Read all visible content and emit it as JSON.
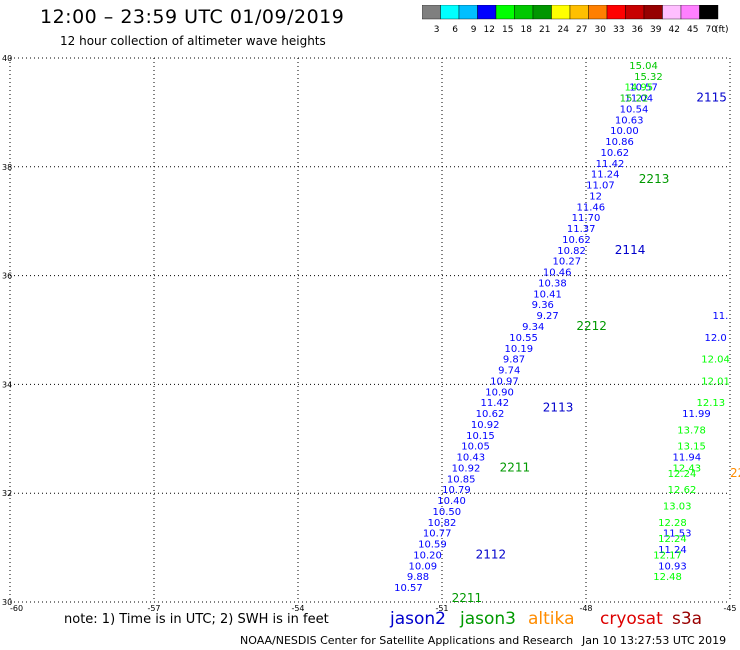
{
  "header": {
    "title": "12:00 – 23:59 UTC 01/09/2019",
    "subtitle": "12 hour collection of altimeter wave heights"
  },
  "colorbar": {
    "colors": [
      "#7f7f7f",
      "#00ffff",
      "#00bfff",
      "#0000ff",
      "#00ff00",
      "#00c800",
      "#009600",
      "#ffff00",
      "#ffbf00",
      "#ff7f00",
      "#ff0000",
      "#c80000",
      "#960000",
      "#ffbfff",
      "#ff80ff",
      "#000000"
    ],
    "labels": [
      "3",
      "6",
      "9",
      "12",
      "15",
      "18",
      "21",
      "24",
      "27",
      "30",
      "33",
      "36",
      "39",
      "42",
      "45",
      "70"
    ],
    "unit": "(ft)"
  },
  "note": "note: 1) Time is in UTC; 2) SWH is in feet",
  "footer": {
    "credit": "NOAA/NESDIS Center for Satellite Applications and Research",
    "timestamp": "Jan 10 13:27:53 UTC 2019"
  },
  "satellites": [
    {
      "name": "jason2",
      "color": "#0000cc"
    },
    {
      "name": "jason3",
      "color": "#009900"
    },
    {
      "name": "altika",
      "color": "#ff8c00"
    },
    {
      "name": "cryosat",
      "color": "#dd0000"
    },
    {
      "name": "s3a",
      "color": "#990000"
    }
  ],
  "chart_data": {
    "type": "scatter",
    "xlim": [
      -60,
      -45
    ],
    "ylim": [
      30,
      40
    ],
    "x_ticks": [
      "-60",
      "-57",
      "-54",
      "-51",
      "-48",
      "-45"
    ],
    "y_ticks": [
      "30",
      "32",
      "34",
      "36",
      "38",
      "40"
    ],
    "grid": true,
    "time_labels": [
      {
        "text": "2211",
        "x": -50.8,
        "y": 30.0,
        "color": "#009900"
      },
      {
        "text": "2112",
        "x": -50.3,
        "y": 30.8,
        "color": "#0000cc"
      },
      {
        "text": "2211",
        "x": -49.8,
        "y": 32.4,
        "color": "#009900"
      },
      {
        "text": "2113",
        "x": -48.9,
        "y": 33.5,
        "color": "#0000cc"
      },
      {
        "text": "2212",
        "x": -48.2,
        "y": 35.0,
        "color": "#009900"
      },
      {
        "text": "2114",
        "x": -47.4,
        "y": 36.4,
        "color": "#0000cc"
      },
      {
        "text": "2213",
        "x": -46.9,
        "y": 37.7,
        "color": "#009900"
      },
      {
        "text": "2115",
        "x": -45.7,
        "y": 39.2,
        "color": "#0000cc"
      },
      {
        "text": "22",
        "x": -45.0,
        "y": 32.3,
        "color": "#ff8c00"
      }
    ],
    "series": [
      {
        "name": "jason2",
        "points": [
          {
            "x": -51.7,
            "y": 30.2,
            "v": "10.57"
          },
          {
            "x": -51.5,
            "y": 30.4,
            "v": "9.88"
          },
          {
            "x": -51.4,
            "y": 30.6,
            "v": "10.09"
          },
          {
            "x": -51.3,
            "y": 30.8,
            "v": "10.20"
          },
          {
            "x": -51.2,
            "y": 31.0,
            "v": "10.59"
          },
          {
            "x": -51.1,
            "y": 31.2,
            "v": "10.77"
          },
          {
            "x": -51.0,
            "y": 31.4,
            "v": "10.82"
          },
          {
            "x": -50.9,
            "y": 31.6,
            "v": "10.50"
          },
          {
            "x": -50.8,
            "y": 31.8,
            "v": "10.40"
          },
          {
            "x": -50.7,
            "y": 32.0,
            "v": "10.79"
          },
          {
            "x": -50.6,
            "y": 32.2,
            "v": "10.85"
          },
          {
            "x": -50.5,
            "y": 32.4,
            "v": "10.92"
          },
          {
            "x": -50.4,
            "y": 32.6,
            "v": "10.43"
          },
          {
            "x": -50.3,
            "y": 32.8,
            "v": "10.05"
          },
          {
            "x": -50.2,
            "y": 33.0,
            "v": "10.15"
          },
          {
            "x": -50.1,
            "y": 33.2,
            "v": "10.92"
          },
          {
            "x": -50.0,
            "y": 33.4,
            "v": "10.62"
          },
          {
            "x": -49.9,
            "y": 33.6,
            "v": "11.42"
          },
          {
            "x": -49.8,
            "y": 33.8,
            "v": "10.90"
          },
          {
            "x": -49.7,
            "y": 34.0,
            "v": "10.97"
          },
          {
            "x": -49.6,
            "y": 34.2,
            "v": "9.74"
          },
          {
            "x": -49.5,
            "y": 34.4,
            "v": "9.87"
          },
          {
            "x": -49.4,
            "y": 34.6,
            "v": "10.19"
          },
          {
            "x": -49.3,
            "y": 34.8,
            "v": "10.55"
          },
          {
            "x": -49.1,
            "y": 35.0,
            "v": "9.34"
          },
          {
            "x": -48.8,
            "y": 35.6,
            "v": "10.41"
          },
          {
            "x": -48.7,
            "y": 35.8,
            "v": "10.38"
          },
          {
            "x": -48.6,
            "y": 36.0,
            "v": "10.46"
          },
          {
            "x": -48.4,
            "y": 36.2,
            "v": "10.27"
          },
          {
            "x": -48.3,
            "y": 36.4,
            "v": "10.82"
          },
          {
            "x": -48.2,
            "y": 36.6,
            "v": "10.62"
          },
          {
            "x": -48.1,
            "y": 36.8,
            "v": "11.37"
          },
          {
            "x": -47.9,
            "y": 37.2,
            "v": "11.46"
          },
          {
            "x": -47.7,
            "y": 37.6,
            "v": "11.07"
          },
          {
            "x": -47.6,
            "y": 37.8,
            "v": "11.24"
          },
          {
            "x": -47.5,
            "y": 38.0,
            "v": "11.42"
          },
          {
            "x": -47.4,
            "y": 38.2,
            "v": "10.62"
          },
          {
            "x": -47.3,
            "y": 38.4,
            "v": "10.86"
          },
          {
            "x": -47.2,
            "y": 38.6,
            "v": "10.00"
          },
          {
            "x": -47.1,
            "y": 38.8,
            "v": "10.63"
          },
          {
            "x": -47.0,
            "y": 39.0,
            "v": "10.54"
          },
          {
            "x": -46.9,
            "y": 39.2,
            "v": "11.04"
          },
          {
            "x": -46.8,
            "y": 39.4,
            "v": "10.57"
          },
          {
            "x": -45.7,
            "y": 33.4,
            "v": "11.99"
          },
          {
            "x": -45.9,
            "y": 32.6,
            "v": "11.94"
          },
          {
            "x": -46.1,
            "y": 31.2,
            "v": "11.53"
          },
          {
            "x": -46.2,
            "y": 30.9,
            "v": "11.24"
          },
          {
            "x": -46.2,
            "y": 30.6,
            "v": "10.93"
          }
        ]
      },
      {
        "name": "jason3",
        "points": [
          {
            "x": -46.8,
            "y": 39.8,
            "v": "15.04"
          },
          {
            "x": -46.7,
            "y": 39.6,
            "v": "15.32"
          },
          {
            "x": -46.9,
            "y": 39.4,
            "v": "14.95"
          },
          {
            "x": -47.0,
            "y": 39.2,
            "v": "15.22"
          },
          {
            "x": -47.8,
            "y": 37.4,
            "v": "12"
          },
          {
            "x": -48.0,
            "y": 37.0,
            "v": "11.70"
          },
          {
            "x": -45.2,
            "y": 35.2,
            "v": "11."
          },
          {
            "x": -45.3,
            "y": 34.8,
            "v": "12.0"
          },
          {
            "x": -45.3,
            "y": 34.4,
            "v": "12.04"
          },
          {
            "x": -45.3,
            "y": 34.0,
            "v": "12.01"
          },
          {
            "x": -45.4,
            "y": 33.6,
            "v": "12.13"
          },
          {
            "x": -45.8,
            "y": 33.1,
            "v": "13.78"
          },
          {
            "x": -45.8,
            "y": 32.8,
            "v": "13.15"
          },
          {
            "x": -45.9,
            "y": 32.4,
            "v": "12.43"
          },
          {
            "x": -46.0,
            "y": 32.3,
            "v": "12.24"
          },
          {
            "x": -46.0,
            "y": 32.0,
            "v": "12.62"
          },
          {
            "x": -46.1,
            "y": 31.7,
            "v": "13.03"
          },
          {
            "x": -46.2,
            "y": 31.4,
            "v": "12.28"
          },
          {
            "x": -46.2,
            "y": 31.1,
            "v": "12.24"
          },
          {
            "x": -46.3,
            "y": 30.8,
            "v": "12.17"
          },
          {
            "x": -46.3,
            "y": 30.4,
            "v": "12.48"
          }
        ]
      },
      {
        "name": "altika",
        "points": [
          {
            "x": -48.9,
            "y": 35.4,
            "v": "9.36"
          },
          {
            "x": -48.8,
            "y": 35.2,
            "v": "9.27"
          }
        ]
      }
    ]
  }
}
